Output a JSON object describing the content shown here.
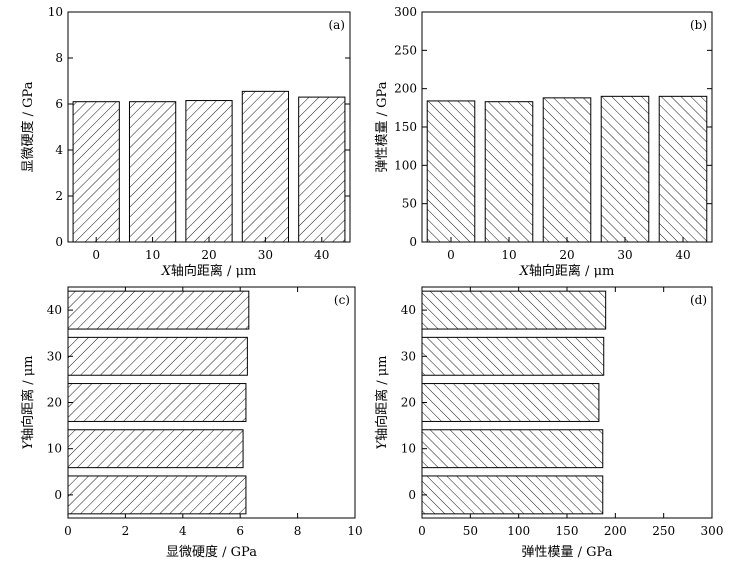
{
  "chart_data": [
    {
      "panel": "(a)",
      "type": "bar",
      "orientation": "vertical",
      "categories": [
        "0",
        "10",
        "20",
        "30",
        "40"
      ],
      "values": [
        6.1,
        6.1,
        6.15,
        6.55,
        6.3
      ],
      "xlabel": "X轴向距离 / μm",
      "ylabel": "显微硬度 / GPa",
      "ylim": [
        0,
        10
      ],
      "yticks": [
        "0",
        "2",
        "4",
        "6",
        "8",
        "10"
      ],
      "pattern": "hatch-forward"
    },
    {
      "panel": "(b)",
      "type": "bar",
      "orientation": "vertical",
      "categories": [
        "0",
        "10",
        "20",
        "30",
        "40"
      ],
      "values": [
        184,
        183,
        188,
        190,
        190
      ],
      "xlabel": "X轴向距离 / μm",
      "ylabel": "弹性模量 / GPa",
      "ylim": [
        0,
        300
      ],
      "yticks": [
        "0",
        "50",
        "100",
        "150",
        "200",
        "250",
        "300"
      ],
      "pattern": "hatch-backward"
    },
    {
      "panel": "(c)",
      "type": "bar",
      "orientation": "horizontal",
      "categories": [
        "0",
        "10",
        "20",
        "30",
        "40"
      ],
      "values": [
        6.2,
        6.1,
        6.2,
        6.25,
        6.3
      ],
      "xlabel": "显微硬度 / GPa",
      "ylabel": "Y轴向距离 / μm",
      "xlim": [
        0,
        10
      ],
      "xticks": [
        "0",
        "2",
        "4",
        "6",
        "8",
        "10"
      ],
      "pattern": "hatch-forward"
    },
    {
      "panel": "(d)",
      "type": "bar",
      "orientation": "horizontal",
      "categories": [
        "0",
        "10",
        "20",
        "30",
        "40"
      ],
      "values": [
        187,
        187,
        183,
        188,
        190
      ],
      "xlabel": "弹性模量 / GPa",
      "ylabel": "Y轴向距离 / μm",
      "xlim": [
        0,
        300
      ],
      "xticks": [
        "0",
        "50",
        "100",
        "150",
        "200",
        "250",
        "300"
      ],
      "pattern": "hatch-backward"
    }
  ]
}
